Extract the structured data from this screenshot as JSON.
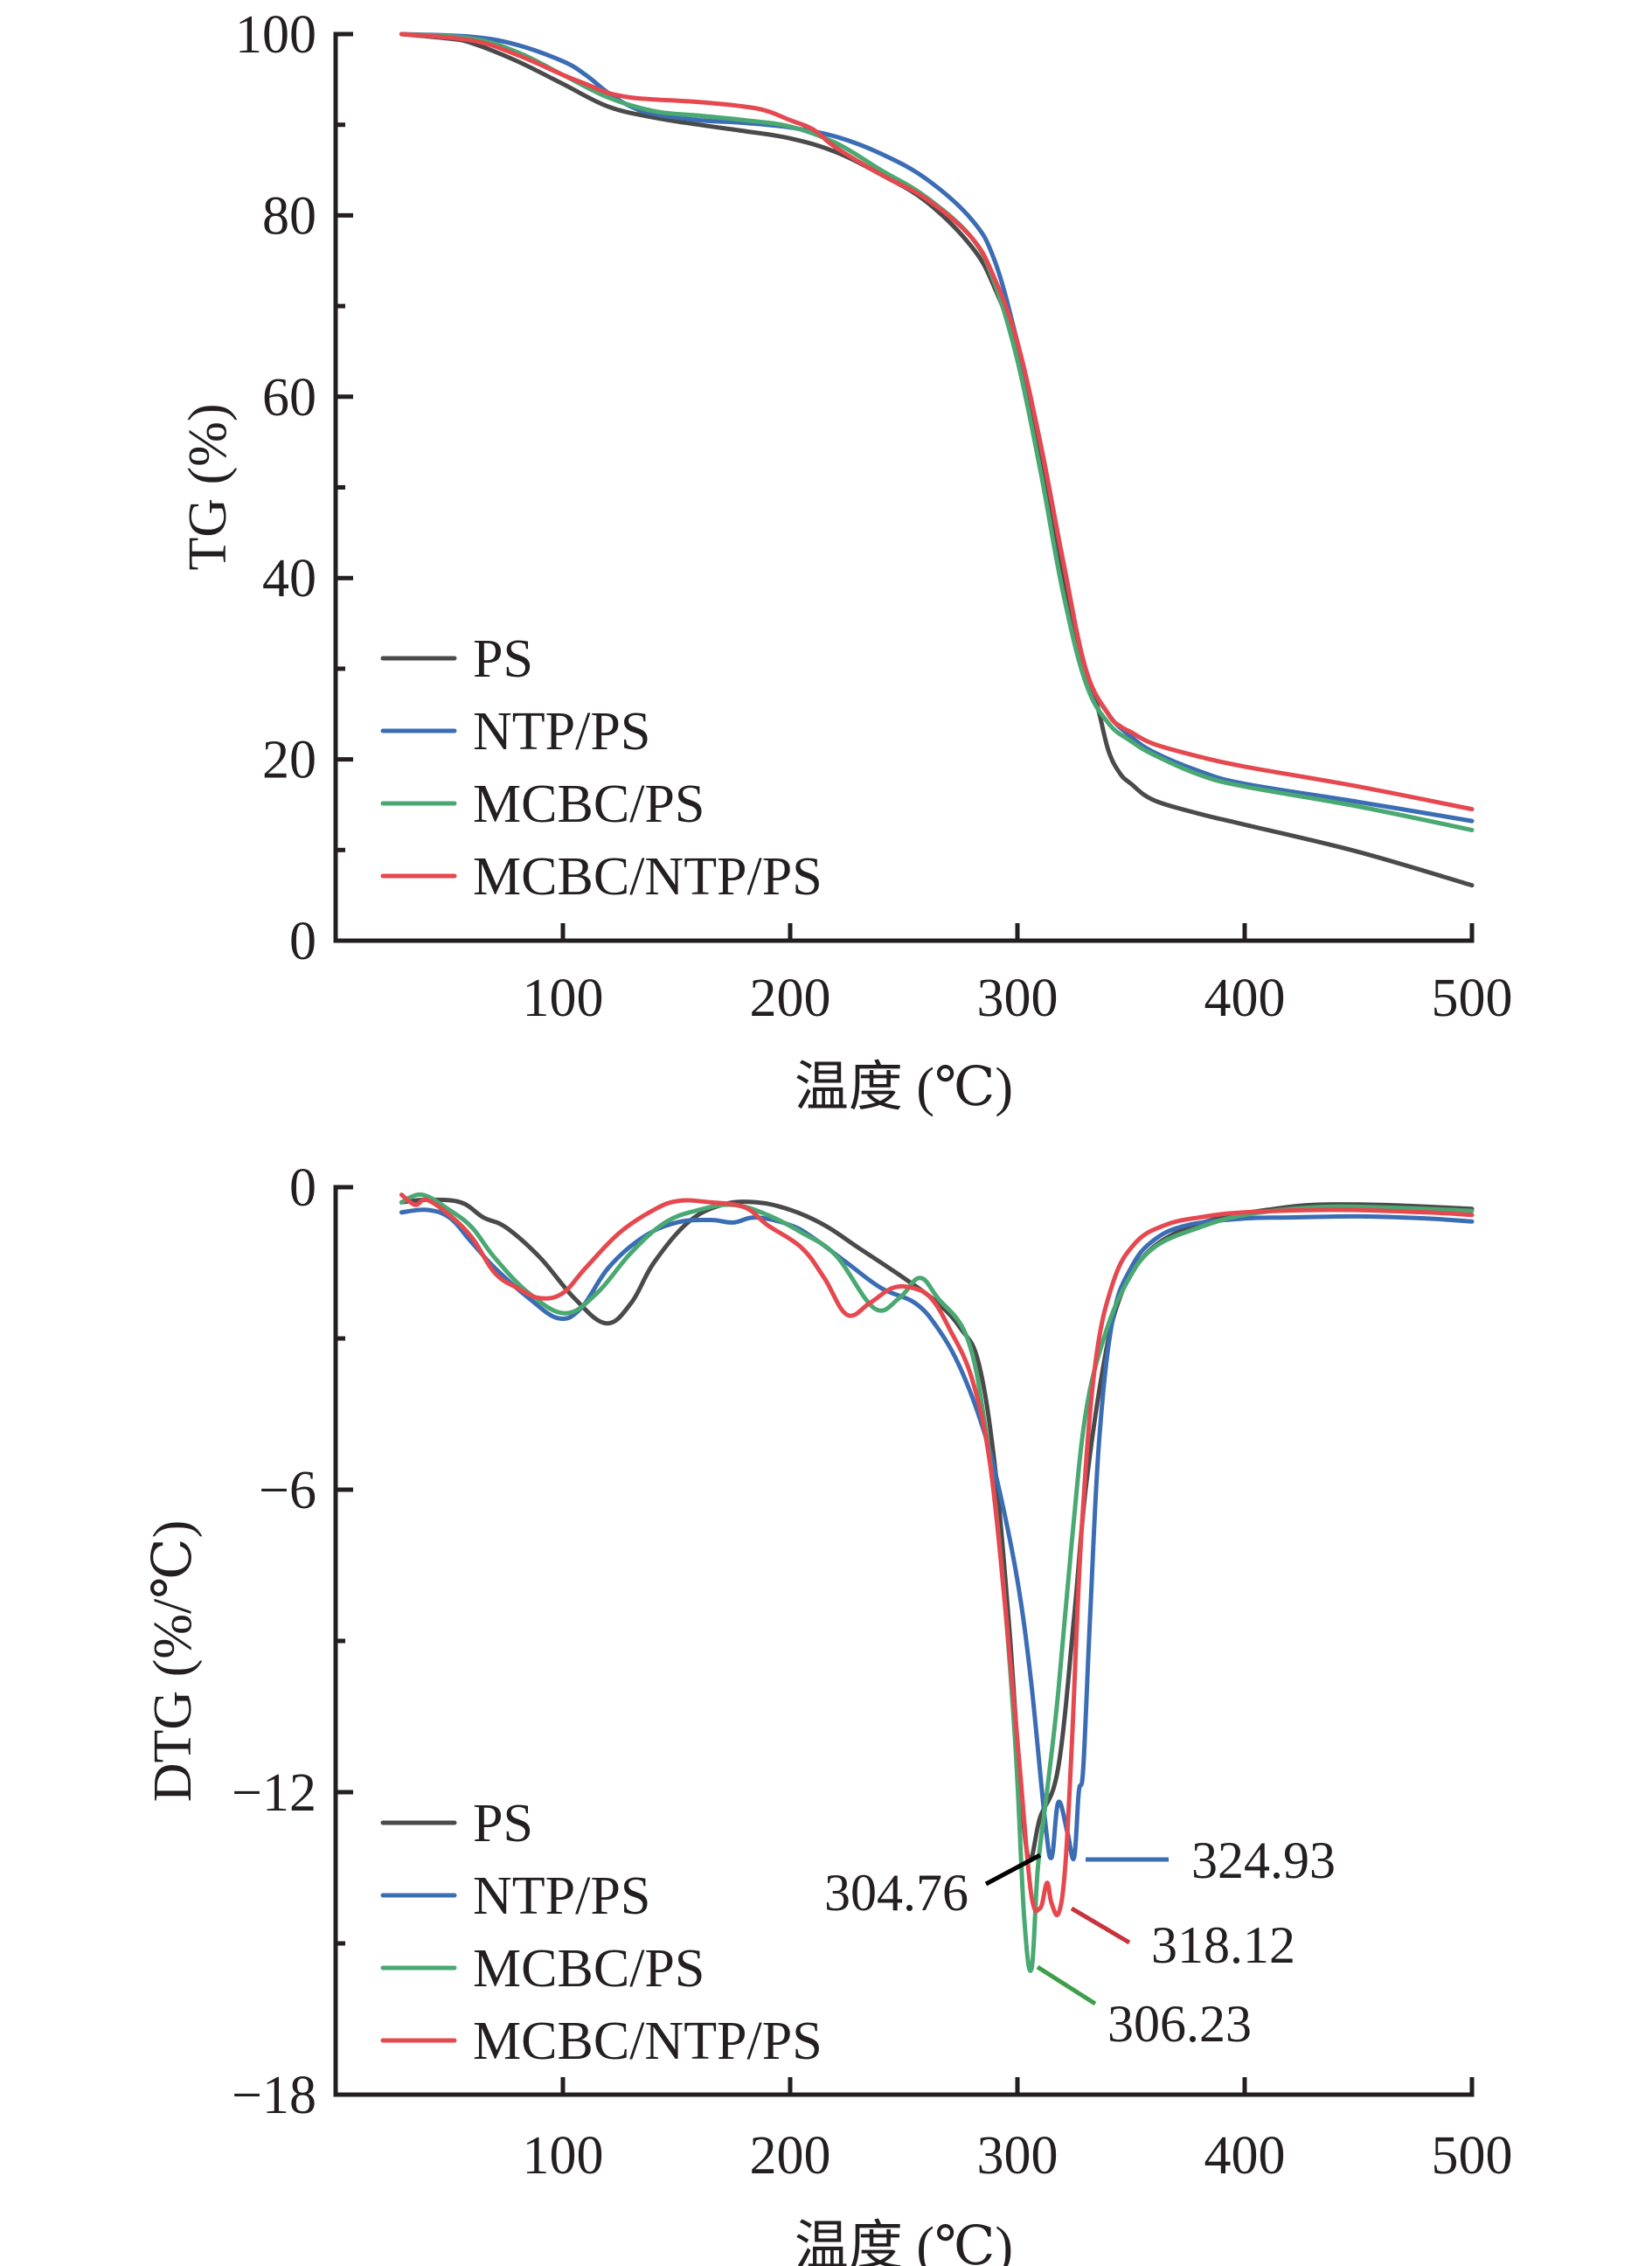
{
  "colors": {
    "PS": "#4a4a4a",
    "NTP/PS": "#3b6db5",
    "MCBC/PS": "#4aa872",
    "MCBC/NTP/PS": "#e5484f",
    "axis": "#231f20"
  },
  "chart_data": [
    {
      "type": "line",
      "title": "",
      "xlabel": "温度 (℃)",
      "ylabel": "TG (%)",
      "xlim": [
        0,
        500
      ],
      "ylim": [
        0,
        100
      ],
      "x_ticks": [
        100,
        200,
        300,
        400,
        500
      ],
      "x_tick_labels": [
        "100",
        "200",
        "300",
        "400",
        "500"
      ],
      "y_ticks": [
        0,
        20,
        40,
        60,
        80,
        100
      ],
      "y_tick_labels": [
        "0",
        "20",
        "40",
        "60",
        "80",
        "100"
      ],
      "y_minor_ticks": [
        10,
        30,
        50,
        70,
        90
      ],
      "grid": false,
      "legend": [
        "PS",
        "NTP/PS",
        "MCBC/PS",
        "MCBC/NTP/PS"
      ],
      "legend_placement": "bottom-left",
      "series": [
        {
          "name": "PS",
          "x": [
            29,
            50,
            60,
            80,
            100,
            120,
            140,
            160,
            180,
            200,
            220,
            240,
            260,
            280,
            290,
            300,
            310,
            320,
            330,
            335,
            340,
            345,
            350,
            360,
            380,
            400,
            450,
            500
          ],
          "y": [
            100,
            99.5,
            99,
            97,
            94.5,
            92,
            90.8,
            90,
            89.3,
            88.5,
            87,
            84.5,
            81.5,
            76.5,
            72,
            65,
            53,
            40,
            29,
            26,
            21,
            18.5,
            17.3,
            15.5,
            14,
            12.8,
            9.8,
            6.1
          ]
        },
        {
          "name": "NTP/PS",
          "x": [
            29,
            60,
            80,
            100,
            110,
            120,
            130,
            140,
            160,
            180,
            200,
            220,
            240,
            260,
            280,
            290,
            300,
            310,
            320,
            330,
            340,
            350,
            360,
            380,
            400,
            450,
            500
          ],
          "y": [
            100,
            99.7,
            98.8,
            97,
            95.5,
            93.5,
            92,
            91.2,
            90.5,
            90.2,
            89.7,
            88.7,
            86.8,
            84,
            79.5,
            75,
            66,
            55,
            42,
            30,
            25,
            22.5,
            20.8,
            18.7,
            17.3,
            15.3,
            13.2
          ]
        },
        {
          "name": "MCBC/PS",
          "x": [
            29,
            60,
            80,
            100,
            120,
            140,
            160,
            180,
            200,
            220,
            240,
            260,
            280,
            290,
            300,
            310,
            320,
            330,
            340,
            350,
            360,
            380,
            400,
            450,
            500
          ],
          "y": [
            100,
            99.5,
            98,
            95.5,
            93,
            91.5,
            91,
            90.5,
            89.8,
            88,
            85,
            82,
            77.5,
            72.5,
            64,
            52,
            38.5,
            28.5,
            24,
            22,
            20.5,
            18.3,
            17,
            14.8,
            12.2
          ]
        },
        {
          "name": "MCBC/NTP/PS",
          "x": [
            29,
            60,
            80,
            100,
            110,
            120,
            130,
            140,
            160,
            180,
            190,
            200,
            210,
            220,
            240,
            260,
            280,
            290,
            300,
            310,
            320,
            330,
            340,
            345,
            350,
            360,
            380,
            400,
            450,
            500
          ],
          "y": [
            100,
            99.3,
            97.7,
            95.5,
            94.5,
            93.5,
            93,
            92.8,
            92.5,
            92,
            91.5,
            90.5,
            89.5,
            87.5,
            84.5,
            81.8,
            77.5,
            73,
            66,
            55,
            42,
            30,
            25,
            23.7,
            23,
            21.7,
            20.3,
            19.2,
            17,
            14.5
          ]
        }
      ]
    },
    {
      "type": "line",
      "title": "",
      "xlabel": "温度 (℃)",
      "ylabel": "DTG (%/℃)",
      "xlim": [
        0,
        500
      ],
      "ylim": [
        -18,
        0
      ],
      "x_ticks": [
        100,
        200,
        300,
        400,
        500
      ],
      "x_tick_labels": [
        "100",
        "200",
        "300",
        "400",
        "500"
      ],
      "y_ticks": [
        0,
        -6,
        -12,
        -18
      ],
      "y_tick_labels": [
        "0",
        "−6",
        "−12",
        "−18"
      ],
      "y_minor_ticks": [
        -3,
        -9,
        -15
      ],
      "grid": false,
      "legend": [
        "PS",
        "NTP/PS",
        "MCBC/PS",
        "MCBC/NTP/PS"
      ],
      "legend_placement": "bottom-left",
      "series": [
        {
          "name": "PS",
          "x": [
            29,
            40,
            55,
            65,
            75,
            90,
            105,
            119,
            130,
            140,
            155,
            170,
            185,
            200,
            215,
            230,
            250,
            265,
            275,
            283,
            290,
            296,
            300,
            304.76,
            310,
            318,
            325,
            330,
            338,
            345,
            355,
            370,
            390,
            410,
            430,
            460,
            500
          ],
          "y": [
            -0.3,
            -0.25,
            -0.3,
            -0.6,
            -0.8,
            -1.4,
            -2.2,
            -2.7,
            -2.3,
            -1.5,
            -0.7,
            -0.35,
            -0.3,
            -0.45,
            -0.75,
            -1.2,
            -1.8,
            -2.3,
            -2.8,
            -3.5,
            -5.5,
            -8.5,
            -11,
            -13.3,
            -12.5,
            -11.5,
            -8.5,
            -6,
            -3.5,
            -2.2,
            -1.4,
            -0.9,
            -0.6,
            -0.45,
            -0.35,
            -0.35,
            -0.43
          ]
        },
        {
          "name": "NTP/PS",
          "x": [
            29,
            40,
            50,
            60,
            70,
            85,
            98,
            108,
            120,
            135,
            150,
            165,
            175,
            185,
            200,
            210,
            225,
            240,
            255,
            265,
            275,
            285,
            292,
            300,
            306,
            312,
            315,
            318,
            322,
            324.93,
            327,
            329,
            332,
            336,
            342,
            350,
            360,
            375,
            400,
            420,
            450,
            480,
            500
          ],
          "y": [
            -0.5,
            -0.45,
            -0.6,
            -1.1,
            -1.6,
            -2.2,
            -2.6,
            -2.4,
            -1.6,
            -1.0,
            -0.7,
            -0.65,
            -0.7,
            -0.6,
            -0.75,
            -1.0,
            -1.5,
            -2.0,
            -2.3,
            -2.8,
            -3.6,
            -4.8,
            -6.0,
            -7.8,
            -9.8,
            -12.5,
            -13.3,
            -12.2,
            -12.8,
            -13.3,
            -12,
            -11.5,
            -8.5,
            -5,
            -2.6,
            -1.6,
            -1.05,
            -0.75,
            -0.62,
            -0.6,
            -0.58,
            -0.62,
            -0.68
          ]
        },
        {
          "name": "MCBC/PS",
          "x": [
            29,
            38,
            50,
            60,
            70,
            85,
            101,
            115,
            130,
            145,
            160,
            175,
            190,
            205,
            220,
            237,
            248,
            257,
            265,
            278,
            286,
            293,
            299,
            303,
            306.23,
            309,
            313,
            318,
            324,
            330,
            338,
            348,
            360,
            380,
            400,
            430,
            460,
            500
          ],
          "y": [
            -0.3,
            -0.15,
            -0.45,
            -0.8,
            -1.4,
            -2.1,
            -2.5,
            -2.1,
            -1.3,
            -0.7,
            -0.45,
            -0.35,
            -0.55,
            -0.9,
            -1.35,
            -2.4,
            -2.2,
            -1.8,
            -2.2,
            -3.0,
            -4.8,
            -7.5,
            -11,
            -14.5,
            -15.5,
            -13.5,
            -12,
            -10,
            -7,
            -4.5,
            -3.0,
            -1.9,
            -1.2,
            -0.8,
            -0.55,
            -0.4,
            -0.4,
            -0.47
          ]
        },
        {
          "name": "MCBC/NTP/PS",
          "x": [
            29,
            35,
            40,
            50,
            60,
            70,
            80,
            90,
            100,
            110,
            125,
            140,
            151,
            165,
            180,
            190,
            205,
            215,
            225,
            235,
            245,
            254,
            262,
            270,
            280,
            288,
            295,
            301,
            306,
            310,
            313,
            315,
            318.12,
            321,
            324,
            328,
            334,
            342,
            352,
            365,
            380,
            400,
            440,
            480,
            500
          ],
          "y": [
            -0.15,
            -0.35,
            -0.25,
            -0.55,
            -1.0,
            -1.7,
            -2.0,
            -2.2,
            -2.1,
            -1.6,
            -0.9,
            -0.45,
            -0.27,
            -0.3,
            -0.4,
            -0.75,
            -1.2,
            -1.8,
            -2.53,
            -2.3,
            -2.0,
            -2.0,
            -2.2,
            -2.8,
            -3.8,
            -5.5,
            -8.5,
            -11.5,
            -14.0,
            -14.3,
            -13.8,
            -14.2,
            -14.4,
            -13.5,
            -11,
            -7,
            -3.6,
            -1.9,
            -1.1,
            -0.75,
            -0.6,
            -0.5,
            -0.45,
            -0.5,
            -0.55
          ]
        }
      ],
      "annotations": [
        {
          "text": "304.76",
          "series": "PS",
          "x": 304.76
        },
        {
          "text": "324.93",
          "series": "NTP/PS",
          "x": 324.93
        },
        {
          "text": "318.12",
          "series": "MCBC/NTP/PS",
          "x": 318.12
        },
        {
          "text": "306.23",
          "series": "MCBC/PS",
          "x": 306.23
        }
      ]
    }
  ]
}
